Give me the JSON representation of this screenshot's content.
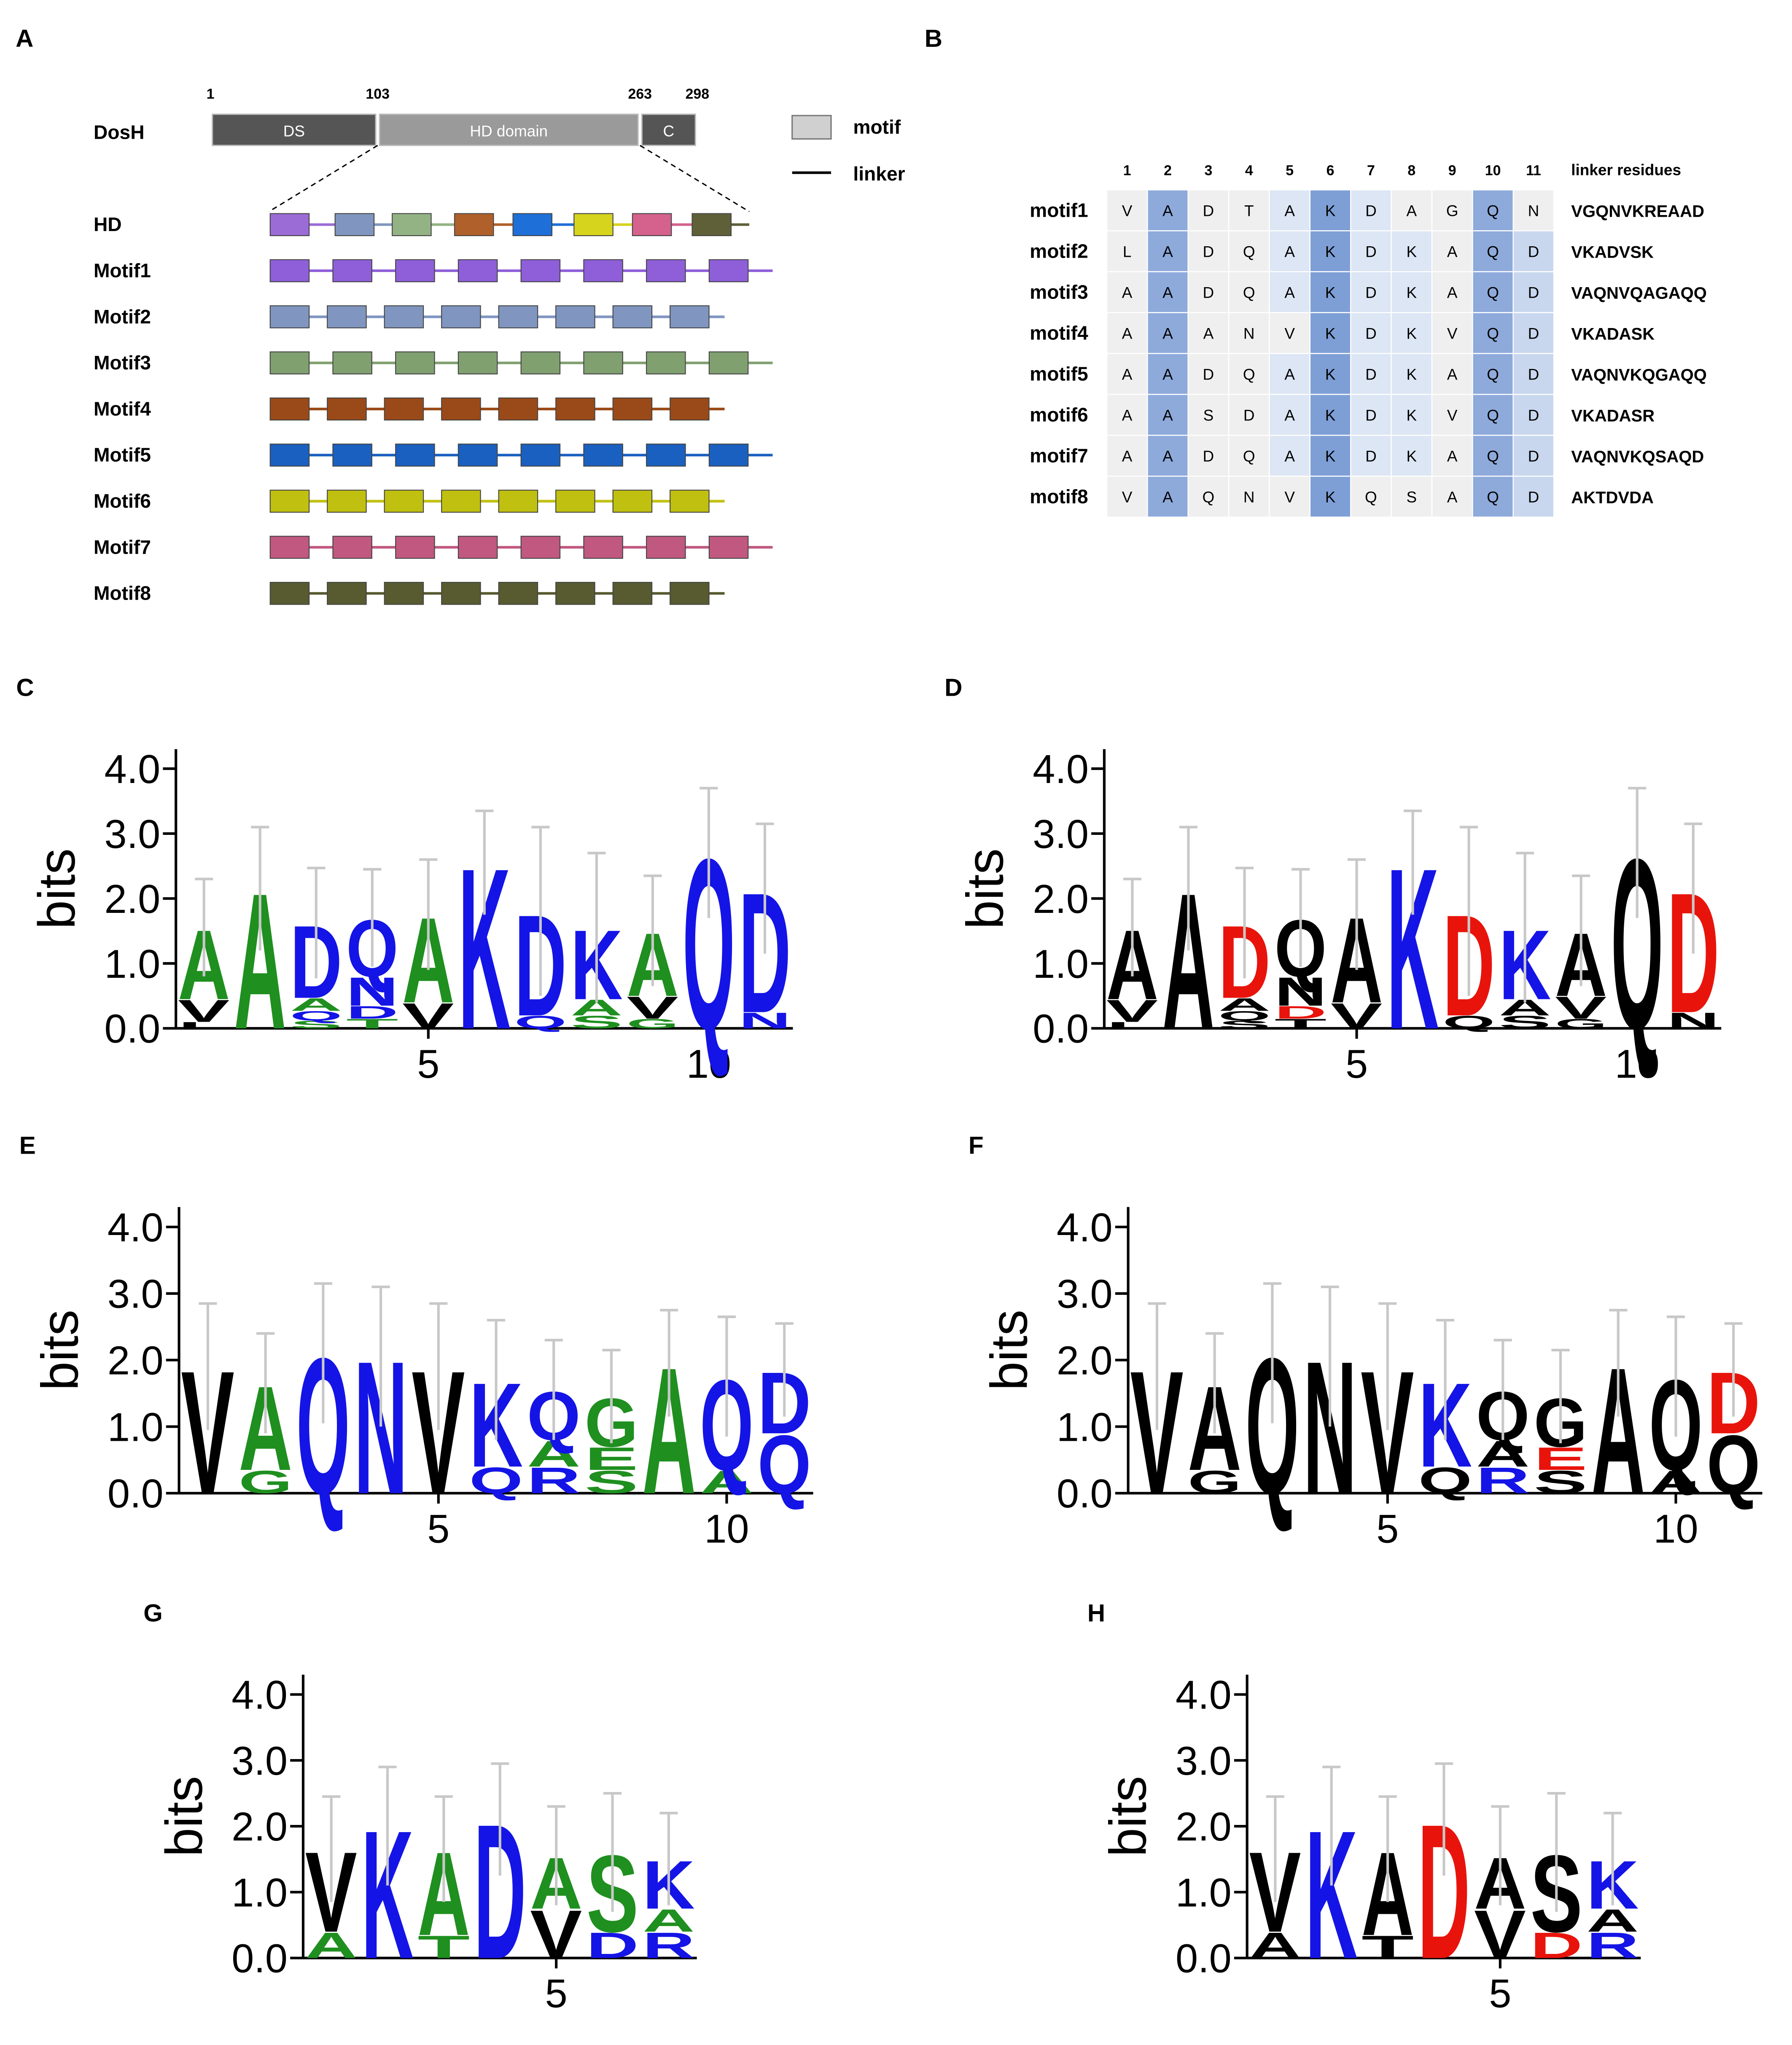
{
  "diagram": {
    "label": "A",
    "protein": "DosH",
    "positions": [
      1,
      103,
      263,
      298
    ],
    "domains": [
      {
        "name": "DS",
        "color": "#555555"
      },
      {
        "name": "HD domain",
        "color": "#9a9a9a"
      },
      {
        "name": "C",
        "color": "#555555"
      }
    ],
    "legend": [
      "motif",
      "linker"
    ],
    "rows": [
      {
        "name": "HD",
        "colors": [
          "#9b6bd6",
          "#8096c0",
          "#93b385",
          "#b0602a",
          "#1e6fd8",
          "#d6d41c",
          "#d4628c",
          "#5f6038"
        ]
      },
      {
        "name": "Motif1",
        "color": "#8e5fd8"
      },
      {
        "name": "Motif2",
        "color": "#8096c0"
      },
      {
        "name": "Motif3",
        "color": "#80a070"
      },
      {
        "name": "Motif4",
        "color": "#9a4a18"
      },
      {
        "name": "Motif5",
        "color": "#1a60c0"
      },
      {
        "name": "Motif6",
        "color": "#c0c010"
      },
      {
        "name": "Motif7",
        "color": "#c05880"
      },
      {
        "name": "Motif8",
        "color": "#585a30"
      }
    ]
  },
  "table": {
    "label": "B",
    "header": [
      "1",
      "2",
      "3",
      "4",
      "5",
      "6",
      "7",
      "8",
      "9",
      "10",
      "11",
      "linker residues"
    ],
    "rows": [
      [
        "motif1",
        "V",
        "A",
        "D",
        "T",
        "A",
        "K",
        "D",
        "A",
        "G",
        "Q",
        "N",
        "VGQNVKREAAD"
      ],
      [
        "motif2",
        "L",
        "A",
        "D",
        "Q",
        "A",
        "K",
        "D",
        "K",
        "A",
        "Q",
        "D",
        "VKADVSK"
      ],
      [
        "motif3",
        "A",
        "A",
        "D",
        "Q",
        "A",
        "K",
        "D",
        "K",
        "A",
        "Q",
        "D",
        "VAQNVQAGAQQ"
      ],
      [
        "motif4",
        "A",
        "A",
        "A",
        "N",
        "V",
        "K",
        "D",
        "K",
        "V",
        "Q",
        "D",
        "VKADASK"
      ],
      [
        "motif5",
        "A",
        "A",
        "D",
        "Q",
        "A",
        "K",
        "D",
        "K",
        "A",
        "Q",
        "D",
        "VAQNVKQGAQQ"
      ],
      [
        "motif6",
        "A",
        "A",
        "S",
        "D",
        "A",
        "K",
        "D",
        "K",
        "V",
        "Q",
        "D",
        "VKADASR"
      ],
      [
        "motif7",
        "A",
        "A",
        "D",
        "Q",
        "A",
        "K",
        "D",
        "K",
        "A",
        "Q",
        "D",
        "VAQNVKQSAQD"
      ],
      [
        "motif8",
        "V",
        "A",
        "Q",
        "N",
        "V",
        "K",
        "Q",
        "S",
        "A",
        "Q",
        "D",
        "AKTDVDA"
      ]
    ]
  },
  "chart_data": [
    {
      "type": "logo",
      "label": "C",
      "ylabel": "bits",
      "xlim": [
        0.5,
        11.5
      ],
      "ylim": [
        0,
        4.3
      ],
      "xticks": [
        5,
        10
      ],
      "yticks": [
        {
          "value": 0,
          "label": "0.0"
        },
        {
          "value": 1,
          "label": "1.0"
        },
        {
          "value": 2,
          "label": "2.0"
        },
        {
          "value": 3,
          "label": "3.0"
        },
        {
          "value": 4,
          "label": "4.0"
        }
      ],
      "x": [
        1,
        2,
        3,
        4,
        5,
        6,
        7,
        8,
        9,
        10,
        11
      ],
      "colors": {
        "A": "#1f8f1f",
        "G": "#1f8f1f",
        "S": "#1f8f1f",
        "T": "#1f8f1f",
        "V": "#000000",
        "L": "#000000",
        "D": "#1414e6",
        "Q": "#1414e6",
        "N": "#1414e6",
        "K": "#1414e6"
      },
      "positions": [
        {
          "letters": [
            "L",
            "V",
            "A"
          ],
          "heights": [
            0.1,
            0.35,
            1.1
          ],
          "error": 0.75
        },
        {
          "letters": [
            "A"
          ],
          "heights": [
            2.15
          ],
          "error": 0.95
        },
        {
          "letters": [
            "S",
            "Q",
            "A",
            "D"
          ],
          "heights": [
            0.12,
            0.15,
            0.2,
            1.15
          ],
          "error": 0.85
        },
        {
          "letters": [
            "T",
            "D",
            "N",
            "Q"
          ],
          "heights": [
            0.15,
            0.2,
            0.45,
            0.9
          ],
          "error": 0.75
        },
        {
          "letters": [
            "V",
            "A"
          ],
          "heights": [
            0.4,
            1.35
          ],
          "error": 0.85
        },
        {
          "letters": [
            "K"
          ],
          "heights": [
            2.55
          ],
          "error": 0.8
        },
        {
          "letters": [
            "Q",
            "D"
          ],
          "heights": [
            0.2,
            1.6
          ],
          "error": 1.3
        },
        {
          "letters": [
            "S",
            "A",
            "K"
          ],
          "heights": [
            0.2,
            0.25,
            1.1
          ],
          "error": 1.15
        },
        {
          "letters": [
            "G",
            "V",
            "A"
          ],
          "heights": [
            0.15,
            0.35,
            1.0
          ],
          "error": 0.85
        },
        {
          "letters": [
            "Q"
          ],
          "heights": [
            2.7
          ],
          "error": 1.0
        },
        {
          "letters": [
            "N",
            "D"
          ],
          "heights": [
            0.25,
            1.9
          ],
          "error": 1.0
        }
      ]
    },
    {
      "type": "logo",
      "label": "D",
      "ylabel": "bits",
      "xlim": [
        0.5,
        11.5
      ],
      "ylim": [
        0,
        4.3
      ],
      "xticks": [
        5,
        10
      ],
      "yticks": [
        {
          "value": 0,
          "label": "0.0"
        },
        {
          "value": 1,
          "label": "1.0"
        },
        {
          "value": 2,
          "label": "2.0"
        },
        {
          "value": 3,
          "label": "3.0"
        },
        {
          "value": 4,
          "label": "4.0"
        }
      ],
      "x": [
        1,
        2,
        3,
        4,
        5,
        6,
        7,
        8,
        9,
        10,
        11
      ],
      "colors": {
        "A": "#000000",
        "G": "#000000",
        "S": "#000000",
        "T": "#000000",
        "V": "#000000",
        "L": "#000000",
        "D": "#e8140c",
        "Q": "#000000",
        "N": "#000000",
        "K": "#1414e6"
      },
      "positions": [
        {
          "letters": [
            "L",
            "V",
            "A"
          ],
          "heights": [
            0.1,
            0.35,
            1.1
          ],
          "error": 0.75
        },
        {
          "letters": [
            "A"
          ],
          "heights": [
            2.15
          ],
          "error": 0.95
        },
        {
          "letters": [
            "S",
            "Q",
            "A",
            "D"
          ],
          "heights": [
            0.12,
            0.15,
            0.2,
            1.15
          ],
          "error": 0.85
        },
        {
          "letters": [
            "T",
            "D",
            "N",
            "Q"
          ],
          "heights": [
            0.15,
            0.2,
            0.45,
            0.9
          ],
          "error": 0.75
        },
        {
          "letters": [
            "V",
            "A"
          ],
          "heights": [
            0.4,
            1.35
          ],
          "error": 0.85
        },
        {
          "letters": [
            "K"
          ],
          "heights": [
            2.55
          ],
          "error": 0.8
        },
        {
          "letters": [
            "Q",
            "D"
          ],
          "heights": [
            0.2,
            1.6
          ],
          "error": 1.3
        },
        {
          "letters": [
            "S",
            "A",
            "K"
          ],
          "heights": [
            0.2,
            0.25,
            1.1
          ],
          "error": 1.15
        },
        {
          "letters": [
            "G",
            "V",
            "A"
          ],
          "heights": [
            0.15,
            0.35,
            1.0
          ],
          "error": 0.85
        },
        {
          "letters": [
            "Q"
          ],
          "heights": [
            2.7
          ],
          "error": 1.0
        },
        {
          "letters": [
            "N",
            "D"
          ],
          "heights": [
            0.25,
            1.9
          ],
          "error": 1.0
        }
      ]
    },
    {
      "type": "logo",
      "label": "E",
      "ylabel": "bits",
      "xlim": [
        0.5,
        11.5
      ],
      "ylim": [
        0,
        4.3
      ],
      "xticks": [
        5,
        10
      ],
      "yticks": [
        {
          "value": 0,
          "label": "0.0"
        },
        {
          "value": 1,
          "label": "1.0"
        },
        {
          "value": 2,
          "label": "2.0"
        },
        {
          "value": 3,
          "label": "3.0"
        },
        {
          "value": 4,
          "label": "4.0"
        }
      ],
      "x": [
        1,
        2,
        3,
        4,
        5,
        6,
        7,
        8,
        9,
        10,
        11
      ],
      "colors": {
        "V": "#000000",
        "A": "#1f8f1f",
        "G": "#1f8f1f",
        "S": "#1f8f1f",
        "E": "#1f8f1f",
        "Q": "#1414e6",
        "N": "#1414e6",
        "K": "#1414e6",
        "R": "#1414e6",
        "D": "#1414e6"
      },
      "positions": [
        {
          "letters": [
            "V"
          ],
          "heights": [
            1.9
          ],
          "error": 0.95
        },
        {
          "letters": [
            "G",
            "A"
          ],
          "heights": [
            0.35,
            1.3
          ],
          "error": 0.75
        },
        {
          "letters": [
            "Q"
          ],
          "heights": [
            2.1
          ],
          "error": 1.05
        },
        {
          "letters": [
            "N"
          ],
          "heights": [
            2.05
          ],
          "error": 1.05
        },
        {
          "letters": [
            "V"
          ],
          "heights": [
            1.9
          ],
          "error": 0.95
        },
        {
          "letters": [
            "Q",
            "K"
          ],
          "heights": [
            0.4,
            1.3
          ],
          "error": 0.9
        },
        {
          "letters": [
            "R",
            "A",
            "Q"
          ],
          "heights": [
            0.4,
            0.4,
            0.75
          ],
          "error": 0.75
        },
        {
          "letters": [
            "S",
            "E",
            "G"
          ],
          "heights": [
            0.35,
            0.35,
            0.75
          ],
          "error": 0.7
        },
        {
          "letters": [
            "A"
          ],
          "heights": [
            1.95
          ],
          "error": 0.8
        },
        {
          "letters": [
            "A",
            "Q"
          ],
          "heights": [
            0.35,
            1.4
          ],
          "error": 0.9
        },
        {
          "letters": [
            "Q",
            "D"
          ],
          "heights": [
            0.9,
            0.95
          ],
          "error": 0.7
        }
      ]
    },
    {
      "type": "logo",
      "label": "F",
      "ylabel": "bits",
      "xlim": [
        0.5,
        11.5
      ],
      "ylim": [
        0,
        4.3
      ],
      "xticks": [
        5,
        10
      ],
      "yticks": [
        {
          "value": 0,
          "label": "0.0"
        },
        {
          "value": 1,
          "label": "1.0"
        },
        {
          "value": 2,
          "label": "2.0"
        },
        {
          "value": 3,
          "label": "3.0"
        },
        {
          "value": 4,
          "label": "4.0"
        }
      ],
      "x": [
        1,
        2,
        3,
        4,
        5,
        6,
        7,
        8,
        9,
        10,
        11
      ],
      "colors": {
        "V": "#000000",
        "A": "#000000",
        "G": "#000000",
        "S": "#000000",
        "E": "#e8140c",
        "Q": "#000000",
        "N": "#000000",
        "K": "#1414e6",
        "R": "#1414e6",
        "D": "#e8140c"
      },
      "positions": [
        {
          "letters": [
            "V"
          ],
          "heights": [
            1.9
          ],
          "error": 0.95
        },
        {
          "letters": [
            "G",
            "A"
          ],
          "heights": [
            0.35,
            1.3
          ],
          "error": 0.75
        },
        {
          "letters": [
            "Q"
          ],
          "heights": [
            2.1
          ],
          "error": 1.05
        },
        {
          "letters": [
            "N"
          ],
          "heights": [
            2.05
          ],
          "error": 1.05
        },
        {
          "letters": [
            "V"
          ],
          "heights": [
            1.9
          ],
          "error": 0.95
        },
        {
          "letters": [
            "Q",
            "K"
          ],
          "heights": [
            0.4,
            1.3
          ],
          "error": 0.9
        },
        {
          "letters": [
            "R",
            "A",
            "Q"
          ],
          "heights": [
            0.4,
            0.4,
            0.75
          ],
          "error": 0.75
        },
        {
          "letters": [
            "S",
            "E",
            "G"
          ],
          "heights": [
            0.35,
            0.35,
            0.75
          ],
          "error": 0.7
        },
        {
          "letters": [
            "A"
          ],
          "heights": [
            1.95
          ],
          "error": 0.8
        },
        {
          "letters": [
            "A",
            "Q"
          ],
          "heights": [
            0.35,
            1.4
          ],
          "error": 0.9
        },
        {
          "letters": [
            "Q",
            "D"
          ],
          "heights": [
            0.9,
            0.95
          ],
          "error": 0.7
        }
      ]
    },
    {
      "type": "logo",
      "label": "G",
      "ylabel": "bits",
      "xlim": [
        0.5,
        7.5
      ],
      "ylim": [
        0,
        4.3
      ],
      "xticks": [
        5
      ],
      "yticks": [
        {
          "value": 0,
          "label": "0.0"
        },
        {
          "value": 1,
          "label": "1.0"
        },
        {
          "value": 2,
          "label": "2.0"
        },
        {
          "value": 3,
          "label": "3.0"
        },
        {
          "value": 4,
          "label": "4.0"
        }
      ],
      "x": [
        1,
        2,
        3,
        4,
        5,
        6,
        7
      ],
      "colors": {
        "V": "#000000",
        "A": "#1f8f1f",
        "T": "#1f8f1f",
        "S": "#1f8f1f",
        "K": "#1414e6",
        "D": "#1414e6",
        "R": "#1414e6"
      },
      "positions": [
        {
          "letters": [
            "A",
            "V"
          ],
          "heights": [
            0.4,
            1.25
          ],
          "error": 0.8
        },
        {
          "letters": [
            "K"
          ],
          "heights": [
            2.0
          ],
          "error": 0.9
        },
        {
          "letters": [
            "T",
            "A"
          ],
          "heights": [
            0.35,
            1.3
          ],
          "error": 0.8
        },
        {
          "letters": [
            "D"
          ],
          "heights": [
            2.1
          ],
          "error": 0.85
        },
        {
          "letters": [
            "V",
            "A"
          ],
          "heights": [
            0.75,
            0.8
          ],
          "error": 0.75
        },
        {
          "letters": [
            "D",
            "S"
          ],
          "heights": [
            0.4,
            1.2
          ],
          "error": 0.9
        },
        {
          "letters": [
            "R",
            "A",
            "K"
          ],
          "heights": [
            0.4,
            0.35,
            0.75
          ],
          "error": 0.7
        }
      ]
    },
    {
      "type": "logo",
      "label": "H",
      "ylabel": "bits",
      "xlim": [
        0.5,
        7.5
      ],
      "ylim": [
        0,
        4.3
      ],
      "xticks": [
        5
      ],
      "yticks": [
        {
          "value": 0,
          "label": "0.0"
        },
        {
          "value": 1,
          "label": "1.0"
        },
        {
          "value": 2,
          "label": "2.0"
        },
        {
          "value": 3,
          "label": "3.0"
        },
        {
          "value": 4,
          "label": "4.0"
        }
      ],
      "x": [
        1,
        2,
        3,
        4,
        5,
        6,
        7
      ],
      "colors": {
        "V": "#000000",
        "A": "#000000",
        "T": "#000000",
        "S": "#000000",
        "K": "#1414e6",
        "D": "#e8140c",
        "R": "#1414e6"
      },
      "positions": [
        {
          "letters": [
            "A",
            "V"
          ],
          "heights": [
            0.4,
            1.25
          ],
          "error": 0.8
        },
        {
          "letters": [
            "K"
          ],
          "heights": [
            2.0
          ],
          "error": 0.9
        },
        {
          "letters": [
            "T",
            "A"
          ],
          "heights": [
            0.35,
            1.3
          ],
          "error": 0.8
        },
        {
          "letters": [
            "D"
          ],
          "heights": [
            2.1
          ],
          "error": 0.85
        },
        {
          "letters": [
            "V",
            "A"
          ],
          "heights": [
            0.75,
            0.8
          ],
          "error": 0.75
        },
        {
          "letters": [
            "D",
            "S"
          ],
          "heights": [
            0.4,
            1.2
          ],
          "error": 0.9
        },
        {
          "letters": [
            "R",
            "A",
            "K"
          ],
          "heights": [
            0.4,
            0.35,
            0.75
          ],
          "error": 0.7
        }
      ]
    }
  ]
}
